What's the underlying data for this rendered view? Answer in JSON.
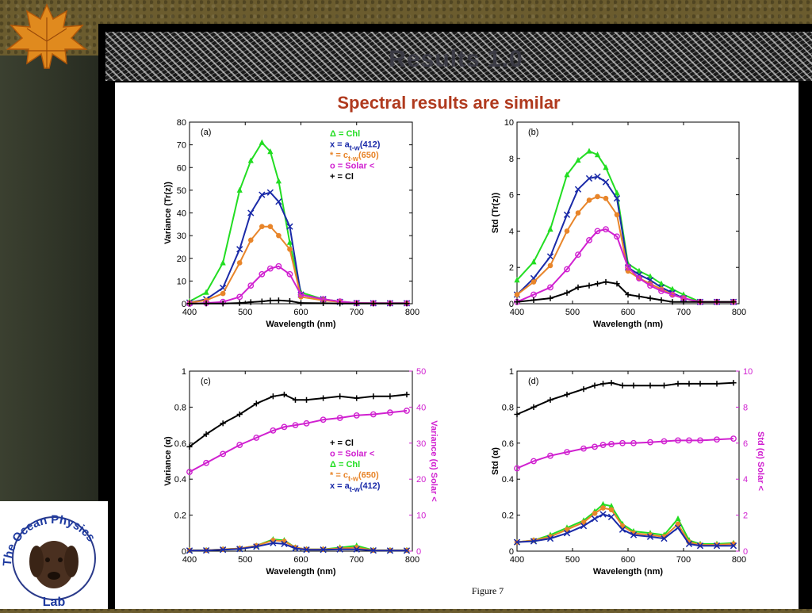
{
  "slide": {
    "title": "Results 1.0",
    "subtitle": "Spectral results are similar",
    "figure_caption": "Figure 7",
    "logo": {
      "top_text": "The Ocean Physics",
      "bottom_text": "Lab"
    }
  },
  "colors": {
    "chl": "#22dd22",
    "a412": "#1a2aa8",
    "c650": "#e8852a",
    "solar": "#d020d0",
    "cl": "#000000",
    "title": "#b03a1e"
  },
  "chart_data": [
    {
      "panel": "(a)",
      "type": "line",
      "xlabel": "Wavelength (nm)",
      "ylabel": "Variance (Tr(z))",
      "xlim": [
        400,
        800
      ],
      "ylim": [
        0,
        80
      ],
      "xticks": [
        400,
        500,
        600,
        700,
        800
      ],
      "yticks": [
        0,
        10,
        20,
        30,
        40,
        50,
        60,
        70,
        80
      ],
      "legend": [
        {
          "key": "chl",
          "label": "Δ = Chl"
        },
        {
          "key": "a412",
          "label": "x = a",
          "sub": "t-w",
          "tail": "(412)"
        },
        {
          "key": "c650",
          "label": "* = c",
          "sub": "t-w",
          "tail": "(650)"
        },
        {
          "key": "solar",
          "label": "o = Solar <"
        },
        {
          "key": "cl",
          "label": "+ = Cl"
        }
      ],
      "x": [
        400,
        430,
        460,
        490,
        510,
        530,
        545,
        560,
        580,
        600,
        640,
        670,
        700,
        730,
        760,
        790
      ],
      "series": [
        {
          "key": "chl",
          "marker": "triangle",
          "values": [
            1,
            5,
            18,
            50,
            63,
            71,
            67,
            54,
            27,
            5,
            2,
            1,
            0.3,
            0.2,
            0.2,
            0.2
          ]
        },
        {
          "key": "a412",
          "marker": "x",
          "values": [
            0.5,
            2,
            7,
            24,
            40,
            48,
            49,
            45,
            34,
            4,
            2,
            0.8,
            0.3,
            0.2,
            0.2,
            0.2
          ]
        },
        {
          "key": "c650",
          "marker": "star",
          "values": [
            0.5,
            1.5,
            4.5,
            18,
            28,
            34,
            34,
            30,
            24,
            3,
            1.5,
            0.8,
            0.3,
            0.2,
            0.2,
            0.2
          ]
        },
        {
          "key": "solar",
          "marker": "circle",
          "values": [
            0,
            0.3,
            0.8,
            3,
            8,
            13,
            15.5,
            16.5,
            13,
            4,
            2,
            1,
            0.3,
            0.2,
            0.2,
            0.2
          ]
        },
        {
          "key": "cl",
          "marker": "plus",
          "values": [
            0.1,
            0.1,
            0.1,
            0.3,
            0.7,
            1,
            1.4,
            1.5,
            1.2,
            0.3,
            0.2,
            0.1,
            0.1,
            0.1,
            0.1,
            0.1
          ]
        }
      ]
    },
    {
      "panel": "(b)",
      "type": "line",
      "xlabel": "Wavelength (nm)",
      "ylabel": "Std (Tr(z))",
      "xlim": [
        400,
        800
      ],
      "ylim": [
        0,
        10
      ],
      "xticks": [
        400,
        500,
        600,
        700,
        800
      ],
      "yticks": [
        0,
        2,
        4,
        6,
        8,
        10
      ],
      "x": [
        400,
        430,
        460,
        490,
        510,
        530,
        545,
        560,
        580,
        600,
        620,
        640,
        660,
        680,
        700,
        730,
        760,
        790
      ],
      "series": [
        {
          "key": "chl",
          "marker": "triangle",
          "values": [
            1.3,
            2.3,
            4.1,
            7.1,
            7.9,
            8.4,
            8.2,
            7.5,
            6.1,
            2.2,
            1.8,
            1.5,
            1.1,
            0.8,
            0.5,
            0.1,
            0.1,
            0.1
          ]
        },
        {
          "key": "a412",
          "marker": "x",
          "values": [
            0.5,
            1.4,
            2.6,
            4.9,
            6.3,
            6.9,
            7.0,
            6.7,
            5.8,
            2.0,
            1.6,
            1.3,
            0.9,
            0.6,
            0.3,
            0.1,
            0.1,
            0.1
          ]
        },
        {
          "key": "c650",
          "marker": "star",
          "values": [
            0.5,
            1.2,
            2.1,
            4.0,
            5.0,
            5.7,
            5.9,
            5.8,
            4.9,
            1.8,
            1.4,
            1.1,
            0.8,
            0.5,
            0.3,
            0.1,
            0.1,
            0.1
          ]
        },
        {
          "key": "solar",
          "marker": "circle",
          "values": [
            0.1,
            0.5,
            0.9,
            1.9,
            2.7,
            3.5,
            4.0,
            4.1,
            3.7,
            2.0,
            1.4,
            1.0,
            0.7,
            0.5,
            0.3,
            0.1,
            0.1,
            0.1
          ]
        },
        {
          "key": "cl",
          "marker": "plus",
          "values": [
            0.1,
            0.2,
            0.3,
            0.6,
            0.9,
            1.0,
            1.1,
            1.2,
            1.1,
            0.5,
            0.4,
            0.3,
            0.2,
            0.1,
            0.1,
            0.1,
            0.1,
            0.1
          ]
        }
      ]
    },
    {
      "panel": "(c)",
      "type": "line",
      "xlabel": "Wavelength (nm)",
      "ylabel": "Variance (α)",
      "y2label": "Variance (α) Solar <",
      "xlim": [
        400,
        800
      ],
      "ylim": [
        0,
        1
      ],
      "y2lim": [
        0,
        50
      ],
      "xticks": [
        400,
        500,
        600,
        700,
        800
      ],
      "yticks": [
        0,
        0.2,
        0.4,
        0.6,
        0.8,
        1
      ],
      "y2ticks": [
        0,
        10,
        20,
        30,
        40,
        50
      ],
      "legend": [
        {
          "key": "cl",
          "label": "+ = Cl"
        },
        {
          "key": "solar",
          "label": "o = Solar <"
        },
        {
          "key": "chl",
          "label": "Δ = Chl"
        },
        {
          "key": "c650",
          "label": "* = c",
          "sub": "t-w",
          "tail": "(650)"
        },
        {
          "key": "a412",
          "label": "x = a",
          "sub": "t-w",
          "tail": "(412)"
        }
      ],
      "x": [
        400,
        430,
        460,
        490,
        520,
        550,
        570,
        590,
        610,
        640,
        670,
        700,
        730,
        760,
        790
      ],
      "series": [
        {
          "key": "cl",
          "marker": "plus",
          "values": [
            0.58,
            0.65,
            0.71,
            0.76,
            0.82,
            0.86,
            0.87,
            0.84,
            0.84,
            0.85,
            0.86,
            0.85,
            0.86,
            0.86,
            0.87
          ]
        },
        {
          "key": "solar",
          "marker": "circle",
          "axis": "y2",
          "values": [
            22,
            24.5,
            27,
            29.5,
            31.5,
            33.5,
            34.5,
            35,
            35.5,
            36.5,
            37,
            37.7,
            38,
            38.5,
            39
          ]
        },
        {
          "key": "chl",
          "marker": "triangle",
          "values": [
            0.005,
            0.005,
            0.01,
            0.015,
            0.03,
            0.065,
            0.06,
            0.02,
            0.01,
            0.01,
            0.02,
            0.03,
            0.005,
            0.005,
            0.005
          ]
        },
        {
          "key": "c650",
          "marker": "star",
          "values": [
            0.005,
            0.005,
            0.01,
            0.015,
            0.03,
            0.06,
            0.055,
            0.02,
            0.01,
            0.01,
            0.015,
            0.02,
            0.005,
            0.005,
            0.005
          ]
        },
        {
          "key": "a412",
          "marker": "x",
          "values": [
            0.003,
            0.004,
            0.008,
            0.012,
            0.025,
            0.045,
            0.04,
            0.015,
            0.008,
            0.008,
            0.01,
            0.01,
            0.004,
            0.003,
            0.003
          ]
        }
      ]
    },
    {
      "panel": "(d)",
      "type": "line",
      "xlabel": "Wavelength (nm)",
      "ylabel": "Std (α)",
      "y2label": "Std (α) Solar <",
      "xlim": [
        400,
        800
      ],
      "ylim": [
        0,
        1
      ],
      "y2lim": [
        0,
        10
      ],
      "xticks": [
        400,
        500,
        600,
        700,
        800
      ],
      "yticks": [
        0,
        0.2,
        0.4,
        0.6,
        0.8,
        1
      ],
      "y2ticks": [
        0,
        2,
        4,
        6,
        8,
        10
      ],
      "x": [
        400,
        430,
        460,
        490,
        520,
        540,
        555,
        570,
        590,
        610,
        640,
        665,
        690,
        710,
        730,
        760,
        790
      ],
      "series": [
        {
          "key": "cl",
          "marker": "plus",
          "values": [
            0.76,
            0.8,
            0.84,
            0.87,
            0.9,
            0.92,
            0.93,
            0.935,
            0.92,
            0.92,
            0.92,
            0.92,
            0.93,
            0.93,
            0.93,
            0.93,
            0.935
          ]
        },
        {
          "key": "solar",
          "marker": "circle",
          "axis": "y2",
          "values": [
            4.6,
            5.0,
            5.3,
            5.5,
            5.7,
            5.8,
            5.9,
            5.95,
            6.0,
            6.0,
            6.05,
            6.1,
            6.15,
            6.15,
            6.15,
            6.2,
            6.25
          ]
        },
        {
          "key": "chl",
          "marker": "triangle",
          "values": [
            0.05,
            0.06,
            0.09,
            0.13,
            0.17,
            0.22,
            0.26,
            0.25,
            0.15,
            0.11,
            0.1,
            0.09,
            0.18,
            0.06,
            0.04,
            0.04,
            0.045
          ]
        },
        {
          "key": "c650",
          "marker": "star",
          "values": [
            0.05,
            0.06,
            0.08,
            0.12,
            0.16,
            0.21,
            0.24,
            0.23,
            0.14,
            0.1,
            0.09,
            0.08,
            0.15,
            0.05,
            0.035,
            0.035,
            0.04
          ]
        },
        {
          "key": "a412",
          "marker": "x",
          "values": [
            0.05,
            0.055,
            0.07,
            0.1,
            0.14,
            0.18,
            0.205,
            0.19,
            0.12,
            0.09,
            0.08,
            0.07,
            0.13,
            0.04,
            0.03,
            0.03,
            0.03
          ]
        }
      ]
    }
  ]
}
